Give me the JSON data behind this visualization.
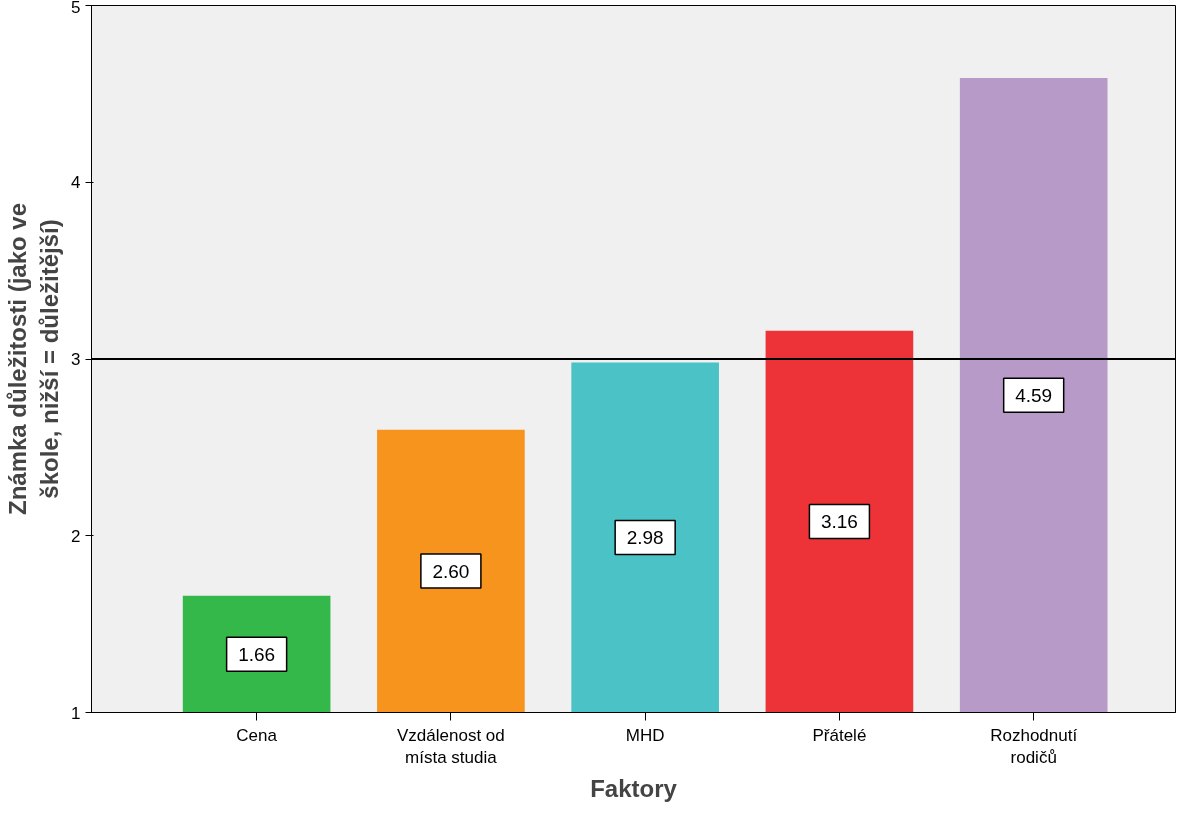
{
  "chart_data": {
    "type": "bar",
    "xlabel": "Faktory",
    "ylabel": "Známka důležitosti (jako ve škole, nižší = důležitější)",
    "categories": [
      "Cena",
      "Vzdálenost od místa studia",
      "MHD",
      "Přátelé",
      "Rozhodnutí rodičů"
    ],
    "values": [
      1.66,
      2.6,
      2.98,
      3.16,
      4.59
    ],
    "value_labels": [
      "1.66",
      "2.60",
      "2.98",
      "3.16",
      "4.59"
    ],
    "colors": [
      "#34b84a",
      "#f7941d",
      "#4bc2c5",
      "#ee3338",
      "#b89ac9"
    ],
    "ylim": [
      1,
      5
    ],
    "yticks": [
      1,
      2,
      3,
      4,
      5
    ],
    "grid": false,
    "ref_lines": [
      {
        "axis": "y",
        "value": 3,
        "color": "#000000"
      }
    ]
  }
}
